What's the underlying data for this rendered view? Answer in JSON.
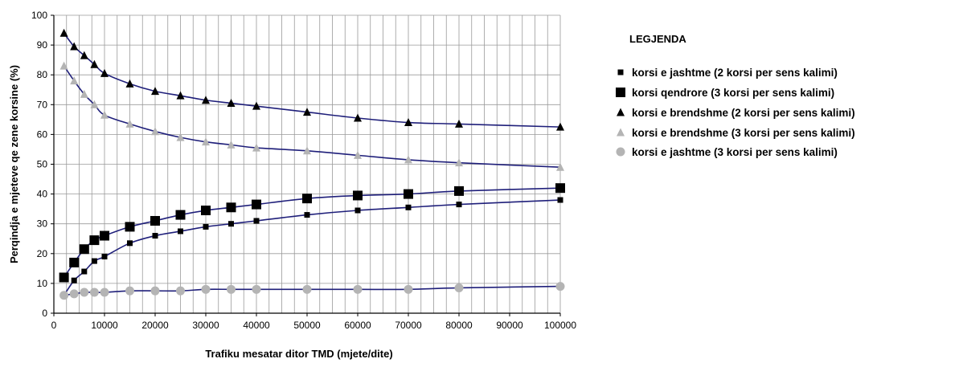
{
  "chart_data": {
    "type": "scatter",
    "title": "",
    "xlabel": "Trafiku mesatar ditor TMD (mjete/dite)",
    "ylabel": "Perqindja e mjeteve qe zene korsine (%)",
    "xlim": [
      0,
      100000
    ],
    "ylim": [
      0,
      100
    ],
    "x_ticks": [
      "0",
      "10000",
      "20000",
      "30000",
      "40000",
      "50000",
      "60000",
      "70000",
      "80000",
      "90000",
      "100000"
    ],
    "y_ticks": [
      "0",
      "10",
      "20",
      "30",
      "40",
      "50",
      "60",
      "70",
      "80",
      "90",
      "100"
    ],
    "grid": true,
    "legend_position": "right",
    "legend_title": "LEGJENDA",
    "curve_color": "#1f1f7a",
    "series": [
      {
        "name": "korsi e jashtme (2 korsi per sens kalimi)",
        "marker": "square-small",
        "color": "#000000",
        "x": [
          2000,
          4000,
          6000,
          8000,
          10000,
          15000,
          20000,
          25000,
          30000,
          35000,
          40000,
          50000,
          60000,
          70000,
          80000,
          100000
        ],
        "y": [
          6,
          11,
          14,
          17.5,
          19,
          23.5,
          26,
          27.5,
          29,
          30,
          31,
          33,
          34.5,
          35.5,
          36.5,
          38
        ]
      },
      {
        "name": "korsi qendrore (3 korsi per sens kalimi)",
        "marker": "square-large",
        "color": "#000000",
        "x": [
          2000,
          4000,
          6000,
          8000,
          10000,
          15000,
          20000,
          25000,
          30000,
          35000,
          40000,
          50000,
          60000,
          70000,
          80000,
          100000
        ],
        "y": [
          12,
          17,
          21.5,
          24.5,
          26,
          29,
          31,
          33,
          34.5,
          35.5,
          36.5,
          38.5,
          39.5,
          40,
          41,
          42
        ]
      },
      {
        "name": "korsi e brendshme (2 korsi per sens kalimi)",
        "marker": "triangle",
        "color": "#000000",
        "x": [
          2000,
          4000,
          6000,
          8000,
          10000,
          15000,
          20000,
          25000,
          30000,
          35000,
          40000,
          50000,
          60000,
          70000,
          80000,
          100000
        ],
        "y": [
          94,
          89.5,
          86.5,
          83.5,
          80.5,
          77,
          74.5,
          73,
          71.5,
          70.5,
          69.5,
          67.5,
          65.5,
          64,
          63.5,
          62.5
        ]
      },
      {
        "name": "korsi e brendshme (3 korsi per sens kalimi)",
        "marker": "triangle",
        "color": "#b4b4b4",
        "x": [
          2000,
          4000,
          6000,
          8000,
          10000,
          15000,
          20000,
          25000,
          30000,
          35000,
          40000,
          50000,
          60000,
          70000,
          80000,
          100000
        ],
        "y": [
          83,
          78,
          73.5,
          70,
          66.5,
          63.5,
          61,
          59,
          57.5,
          56.5,
          55.5,
          54.5,
          53,
          51.5,
          50.5,
          49
        ]
      },
      {
        "name": "korsi e jashtme (3 korsi per sens kalimi)",
        "marker": "circle",
        "color": "#b4b4b4",
        "x": [
          2000,
          4000,
          6000,
          8000,
          10000,
          15000,
          20000,
          25000,
          30000,
          35000,
          40000,
          50000,
          60000,
          70000,
          80000,
          100000
        ],
        "y": [
          6,
          6.5,
          7,
          7,
          7,
          7.5,
          7.5,
          7.5,
          8,
          8,
          8,
          8,
          8,
          8,
          8.5,
          9
        ]
      }
    ]
  }
}
